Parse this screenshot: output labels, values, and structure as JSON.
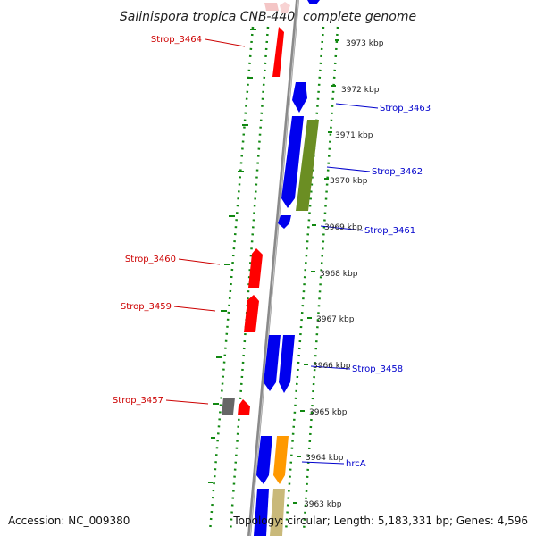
{
  "title": "Salinispora tropica CNB-440, complete genome",
  "footer": {
    "accession": "Accession: NC_009380",
    "topology": "Topology: circular; Length: 5,183,331 bp; Genes: 4,596"
  },
  "colors": {
    "forward_label": "#cc0000",
    "reverse_label": "#0000cc",
    "forward_gene": "#ff0000",
    "reverse_gene": "#0000ee",
    "olive_gene": "#6b8e23",
    "orange_gene": "#ff9900",
    "tan_gene": "#c9b97a",
    "grey_gene": "#666666",
    "dots": "#118811",
    "backbone": "#8a8a8a"
  },
  "kbp_labels": [
    {
      "name": "kbp-3973",
      "text": "3973 kbp"
    },
    {
      "name": "kbp-3972",
      "text": "3972 kbp"
    },
    {
      "name": "kbp-3971",
      "text": "3971 kbp"
    },
    {
      "name": "kbp-3970",
      "text": "3970 kbp"
    },
    {
      "name": "kbp-3969",
      "text": "3969 kbp"
    },
    {
      "name": "kbp-3968",
      "text": "3968 kbp"
    },
    {
      "name": "kbp-3967",
      "text": "3967 kbp"
    },
    {
      "name": "kbp-3966",
      "text": "3966 kbp"
    },
    {
      "name": "kbp-3965",
      "text": "3965 kbp"
    },
    {
      "name": "kbp-3964",
      "text": "3964 kbp"
    },
    {
      "name": "kbp-3963",
      "text": "3963 kbp"
    }
  ],
  "left_labels": [
    {
      "name": "label-strop-3464",
      "text": "Strop_3464"
    },
    {
      "name": "label-strop-3460",
      "text": "Strop_3460"
    },
    {
      "name": "label-strop-3459",
      "text": "Strop_3459"
    },
    {
      "name": "label-strop-3457",
      "text": "Strop_3457"
    }
  ],
  "right_labels": [
    {
      "name": "label-strop-3463",
      "text": "Strop_3463"
    },
    {
      "name": "label-strop-3462",
      "text": "Strop_3462"
    },
    {
      "name": "label-strop-3461",
      "text": "Strop_3461"
    },
    {
      "name": "label-strop-3458",
      "text": "Strop_3458"
    },
    {
      "name": "label-hrca",
      "text": "hrcA"
    }
  ]
}
